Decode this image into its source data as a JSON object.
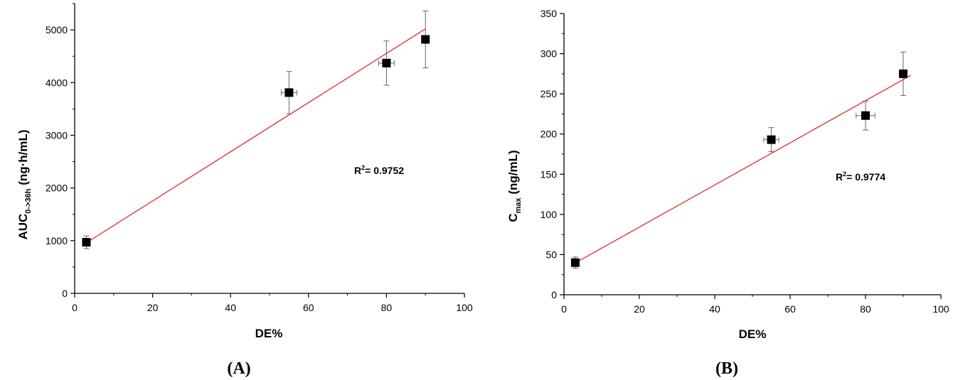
{
  "chart_data": [
    {
      "type": "scatter",
      "panel_label": "(A)",
      "xlabel": "DE%",
      "ylabel_main": "AUC",
      "ylabel_sub": "0->36h",
      "ylabel_unit": " (ng·h/mL)",
      "annotation_main": "R",
      "annotation_sup": "2",
      "annotation_rest": "= 0.9752",
      "xlim": [
        0,
        100
      ],
      "ylim": [
        0,
        5500
      ],
      "xticks": [
        0,
        20,
        40,
        60,
        80,
        100
      ],
      "yticks": [
        0,
        1000,
        2000,
        3000,
        4000,
        5000
      ],
      "points": [
        {
          "x": 3,
          "y": 970,
          "xerr": 0,
          "yerr": 120
        },
        {
          "x": 55,
          "y": 3810,
          "xerr": 2,
          "yerr": 400
        },
        {
          "x": 80,
          "y": 4370,
          "xerr": 2,
          "yerr": 420
        },
        {
          "x": 90,
          "y": 4820,
          "xerr": 0,
          "yerr": 540
        }
      ],
      "fit": {
        "x": [
          3,
          90
        ],
        "y": [
          960,
          5020
        ]
      },
      "colors": {
        "fit": "#e32b2b",
        "marker": "#000000"
      }
    },
    {
      "type": "scatter",
      "panel_label": "(B)",
      "xlabel": "DE%",
      "ylabel_main": "C",
      "ylabel_sub": "max",
      "ylabel_unit": " (ng/mL)",
      "annotation_main": "R",
      "annotation_sup": "2",
      "annotation_rest": "= 0.9774",
      "xlim": [
        0,
        100
      ],
      "ylim": [
        0,
        350
      ],
      "xticks": [
        0,
        20,
        40,
        60,
        80,
        100
      ],
      "yticks": [
        0,
        50,
        100,
        150,
        200,
        250,
        300,
        350
      ],
      "points": [
        {
          "x": 3,
          "y": 40,
          "xerr": 0,
          "yerr": 7
        },
        {
          "x": 55,
          "y": 193,
          "xerr": 2,
          "yerr": 15
        },
        {
          "x": 80,
          "y": 223,
          "xerr": 2.5,
          "yerr": 18
        },
        {
          "x": 90,
          "y": 275,
          "xerr": 0,
          "yerr": 27
        }
      ],
      "fit": {
        "x": [
          2,
          92
        ],
        "y": [
          37,
          273
        ]
      },
      "colors": {
        "fit": "#e32b2b",
        "marker": "#000000"
      }
    }
  ]
}
